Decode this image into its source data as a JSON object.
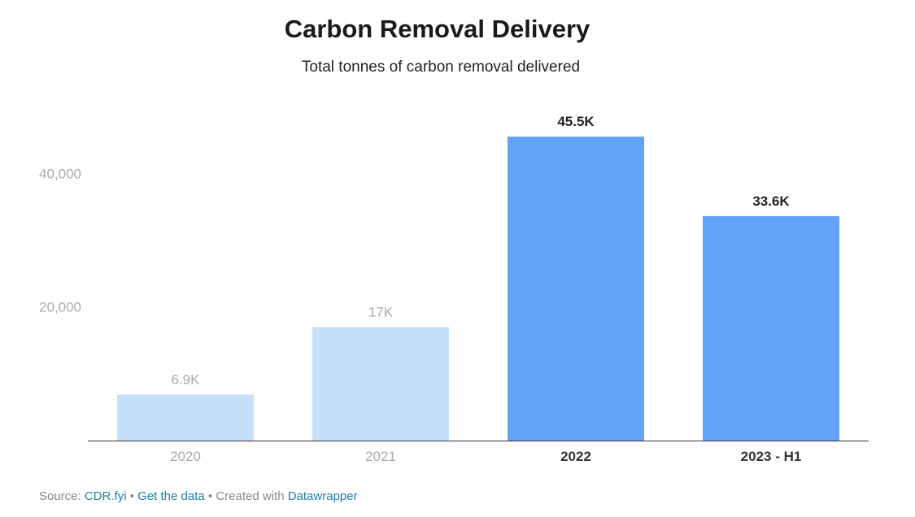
{
  "chart_data": {
    "type": "bar",
    "title": "Carbon Removal Delivery",
    "subtitle": "Total tonnes of carbon removal delivered",
    "categories": [
      "2020",
      "2021",
      "2022",
      "2023 - H1"
    ],
    "values": [
      6900,
      17000,
      45500,
      33600
    ],
    "data_labels": [
      "6.9K",
      "17K",
      "45.5K",
      "33.6K"
    ],
    "ylim": [
      0,
      46000
    ],
    "yticks": [
      20000,
      40000
    ],
    "ytick_labels": [
      "20,000",
      "40,000"
    ],
    "grid": false,
    "highlighted": [
      false,
      false,
      true,
      true
    ],
    "colors": {
      "muted_bar": "#c6dffa",
      "highlight_bar": "#62a3f7",
      "muted_text": "#aaaaaa",
      "highlight_text": "#222222",
      "baseline": "#333333",
      "tick_text": "#aaaaaa"
    }
  },
  "footer": {
    "source_prefix": "Source:",
    "source_link": "CDR.fyi",
    "separator1": "•",
    "data_link": "Get the data",
    "separator2": "•",
    "created_text": "Created with",
    "tool_link": "Datawrapper"
  }
}
